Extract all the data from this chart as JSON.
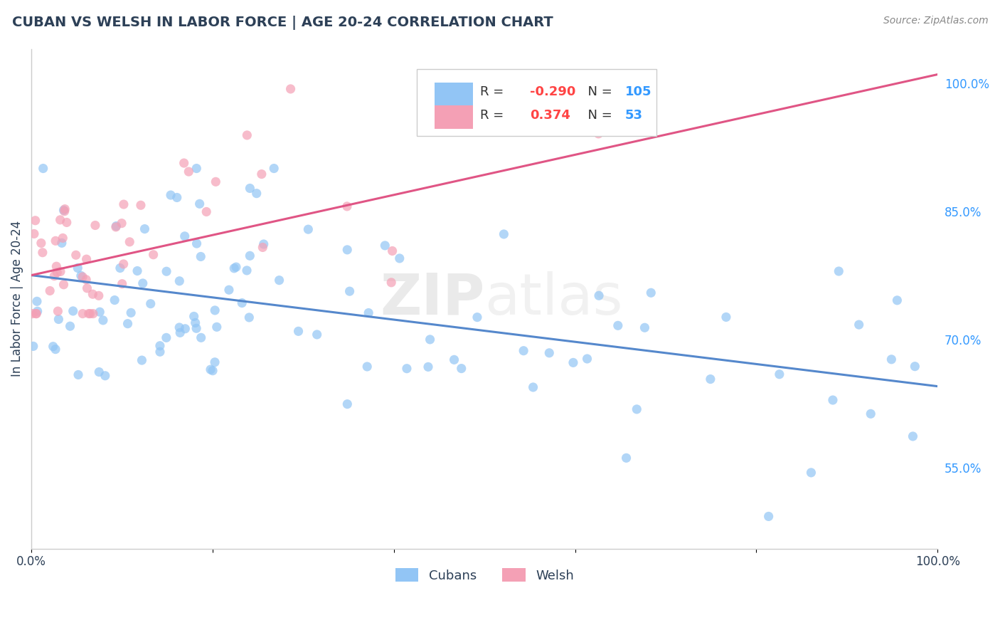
{
  "title": "CUBAN VS WELSH IN LABOR FORCE | AGE 20-24 CORRELATION CHART",
  "source": "Source: ZipAtlas.com",
  "ylabel": "In Labor Force | Age 20-24",
  "xlim": [
    0.0,
    1.0
  ],
  "ylim": [
    0.455,
    1.04
  ],
  "y_tick_right": [
    0.55,
    0.7,
    0.85,
    1.0
  ],
  "y_tick_right_labels": [
    "55.0%",
    "70.0%",
    "85.0%",
    "100.0%"
  ],
  "cuban_R": -0.29,
  "cuban_N": 105,
  "welsh_R": 0.374,
  "welsh_N": 53,
  "cuban_color": "#92c5f5",
  "welsh_color": "#f4a0b5",
  "cuban_line_color": "#5588cc",
  "welsh_line_color": "#e05585",
  "background_color": "#ffffff",
  "grid_color": "#cccccc",
  "title_color": "#2d4057",
  "r_color": "#ff4444",
  "n_color": "#3399ff",
  "cuban_line_start_y": 0.775,
  "cuban_line_end_y": 0.645,
  "welsh_line_start_y": 0.775,
  "welsh_line_end_y": 1.01,
  "figsize": [
    14.06,
    8.92
  ],
  "dpi": 100
}
